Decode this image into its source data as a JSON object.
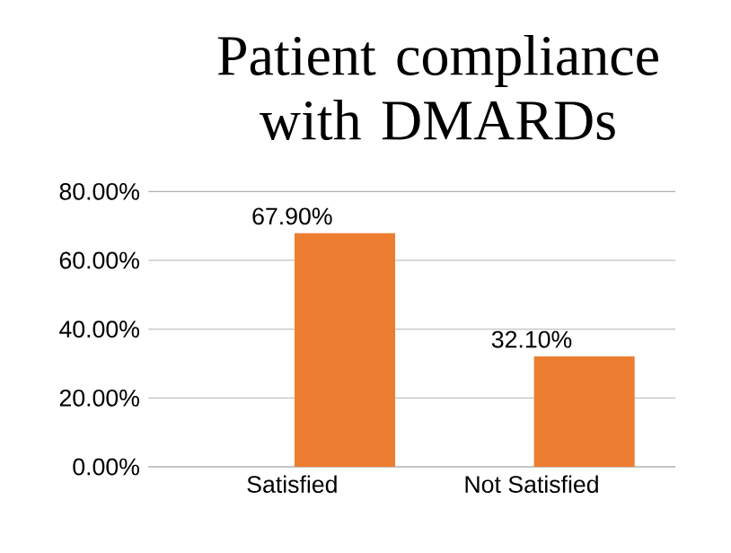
{
  "chart_data": {
    "type": "bar",
    "title": "Patient compliance with DMARDs",
    "categories": [
      "Satisfied",
      "Not Satisfied"
    ],
    "values": [
      67.9,
      32.1
    ],
    "color": "#ed7d31",
    "value_labels": [
      "67.90%",
      "32.10%"
    ],
    "ylim": [
      0,
      80
    ],
    "yticks": [
      {
        "value": 0,
        "label": "0.00%"
      },
      {
        "value": 20,
        "label": "20.00%"
      },
      {
        "value": 40,
        "label": "40.00%"
      },
      {
        "value": 60,
        "label": "60.00%"
      },
      {
        "value": 80,
        "label": "80.00%"
      }
    ],
    "grid": "y"
  }
}
